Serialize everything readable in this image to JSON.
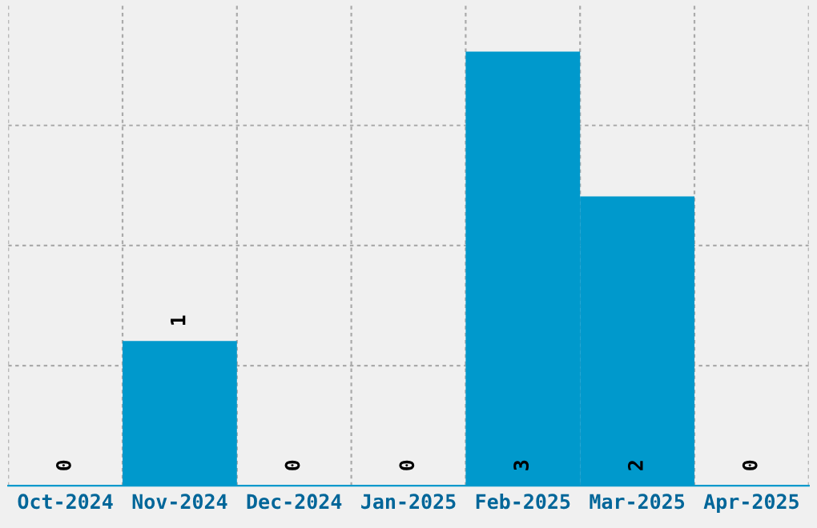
{
  "chart_data": {
    "type": "bar",
    "categories": [
      "Oct-2024",
      "Nov-2024",
      "Dec-2024",
      "Jan-2025",
      "Feb-2025",
      "Mar-2025",
      "Apr-2025"
    ],
    "values": [
      0,
      1,
      0,
      0,
      3,
      2,
      0
    ],
    "color": "#0099cc",
    "ylim": [
      0,
      3.32
    ],
    "yticks": [
      {
        "value": 0.83,
        "label": null
      },
      {
        "value": 1.66,
        "label": null
      },
      {
        "value": 2.49,
        "label": null
      }
    ],
    "grid": true,
    "data_labels": true,
    "tick_labels": "x"
  }
}
